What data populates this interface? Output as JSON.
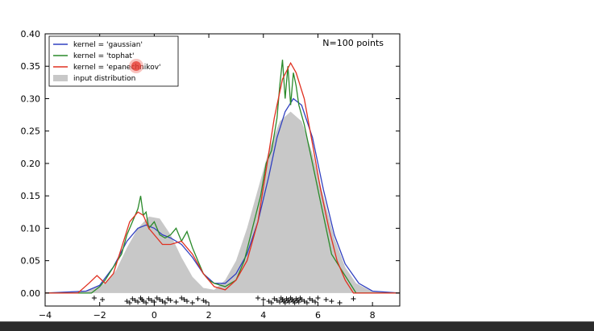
{
  "chart_data": {
    "type": "line",
    "annotation": "N=100 points",
    "xlim": [
      -4,
      9
    ],
    "ylim": [
      -0.02,
      0.4
    ],
    "x_ticks": [
      -4,
      -2,
      0,
      2,
      4,
      6,
      8
    ],
    "y_ticks": [
      0.0,
      0.05,
      0.1,
      0.15,
      0.2,
      0.25,
      0.3,
      0.35,
      0.4
    ],
    "x_tick_labels": [
      "−4",
      "−2",
      "0",
      "2",
      "4",
      "6",
      "8"
    ],
    "y_tick_labels": [
      "0.00",
      "0.05",
      "0.10",
      "0.15",
      "0.20",
      "0.25",
      "0.30",
      "0.35",
      "0.40"
    ],
    "legend": {
      "placement": "upper-left",
      "entries": [
        {
          "label": "kernel = 'gaussian'",
          "color": "#3040c0",
          "kind": "line"
        },
        {
          "label": "kernel = 'tophat'",
          "color": "#2a8a2a",
          "kind": "line"
        },
        {
          "label": "kernel = 'epanechnikov'",
          "color": "#e03020",
          "kind": "line"
        },
        {
          "label": "input distribution",
          "color": "#c8c8c8",
          "kind": "patch"
        }
      ]
    },
    "input_distribution": {
      "color": "#c8c8c8",
      "x": [
        -4,
        -2.5,
        -1.8,
        -1.4,
        -1.0,
        -0.6,
        -0.2,
        0.2,
        0.6,
        1.0,
        1.4,
        1.8,
        2.2,
        2.6,
        3.0,
        3.4,
        3.8,
        4.2,
        4.6,
        5.0,
        5.4,
        5.8,
        6.2,
        6.6,
        7.0,
        7.4,
        8.0,
        9.0
      ],
      "y": [
        0.0,
        0.004,
        0.015,
        0.035,
        0.07,
        0.1,
        0.118,
        0.115,
        0.09,
        0.055,
        0.025,
        0.008,
        0.005,
        0.02,
        0.05,
        0.1,
        0.16,
        0.22,
        0.265,
        0.28,
        0.265,
        0.215,
        0.15,
        0.085,
        0.04,
        0.015,
        0.002,
        0.0
      ]
    },
    "series": [
      {
        "name": "kernel = 'gaussian'",
        "color": "#3040c0",
        "x": [
          -4,
          -2.5,
          -2.0,
          -1.5,
          -1.0,
          -0.6,
          -0.3,
          0.0,
          0.3,
          0.6,
          1.0,
          1.4,
          1.8,
          2.2,
          2.6,
          3.0,
          3.4,
          3.8,
          4.2,
          4.5,
          4.8,
          5.1,
          5.4,
          5.8,
          6.2,
          6.6,
          7.0,
          7.5,
          8.0,
          9.0
        ],
        "y": [
          0.0,
          0.003,
          0.012,
          0.04,
          0.08,
          0.1,
          0.105,
          0.1,
          0.09,
          0.085,
          0.075,
          0.055,
          0.03,
          0.015,
          0.015,
          0.03,
          0.06,
          0.11,
          0.18,
          0.24,
          0.28,
          0.3,
          0.29,
          0.24,
          0.16,
          0.09,
          0.045,
          0.015,
          0.003,
          0.0
        ]
      },
      {
        "name": "kernel = 'tophat'",
        "color": "#2a8a2a",
        "x": [
          -4,
          -2.3,
          -2.0,
          -1.8,
          -1.5,
          -1.2,
          -1.0,
          -0.8,
          -0.6,
          -0.5,
          -0.4,
          -0.3,
          -0.2,
          0.0,
          0.2,
          0.4,
          0.6,
          0.8,
          1.0,
          1.2,
          1.4,
          1.6,
          1.8,
          2.0,
          2.2,
          2.6,
          3.0,
          3.3,
          3.6,
          3.9,
          4.1,
          4.3,
          4.5,
          4.6,
          4.7,
          4.8,
          4.9,
          5.0,
          5.1,
          5.2,
          5.3,
          5.5,
          5.7,
          5.9,
          6.1,
          6.3,
          6.5,
          6.8,
          7.1,
          7.4,
          9.0
        ],
        "y": [
          0.0,
          0.0,
          0.01,
          0.02,
          0.04,
          0.06,
          0.09,
          0.11,
          0.13,
          0.15,
          0.12,
          0.125,
          0.1,
          0.11,
          0.09,
          0.085,
          0.09,
          0.1,
          0.08,
          0.095,
          0.07,
          0.05,
          0.03,
          0.02,
          0.015,
          0.01,
          0.02,
          0.05,
          0.1,
          0.15,
          0.2,
          0.22,
          0.27,
          0.32,
          0.36,
          0.3,
          0.35,
          0.29,
          0.34,
          0.32,
          0.29,
          0.26,
          0.22,
          0.18,
          0.14,
          0.1,
          0.06,
          0.04,
          0.02,
          0.0,
          0.0
        ]
      },
      {
        "name": "kernel = 'epanechnikov'",
        "color": "#e03020",
        "x": [
          -4,
          -2.8,
          -2.4,
          -2.1,
          -1.8,
          -1.5,
          -1.2,
          -0.9,
          -0.6,
          -0.4,
          -0.2,
          0.0,
          0.3,
          0.6,
          1.0,
          1.4,
          1.8,
          2.2,
          2.6,
          3.0,
          3.4,
          3.8,
          4.1,
          4.4,
          4.7,
          5.0,
          5.2,
          5.5,
          5.8,
          6.1,
          6.4,
          6.7,
          7.0,
          7.3,
          9.0
        ],
        "y": [
          0.0,
          0.0,
          0.015,
          0.027,
          0.015,
          0.03,
          0.07,
          0.11,
          0.125,
          0.12,
          0.1,
          0.09,
          0.075,
          0.075,
          0.08,
          0.06,
          0.03,
          0.01,
          0.005,
          0.02,
          0.05,
          0.11,
          0.19,
          0.27,
          0.33,
          0.355,
          0.34,
          0.3,
          0.23,
          0.16,
          0.1,
          0.05,
          0.02,
          0.0,
          0.0
        ]
      }
    ],
    "samples_x": [
      -2.2,
      -1.9,
      -1.0,
      -0.9,
      -0.8,
      -0.7,
      -0.6,
      -0.5,
      -0.45,
      -0.4,
      -0.3,
      -0.2,
      -0.1,
      0.0,
      0.1,
      0.2,
      0.3,
      0.4,
      0.5,
      0.6,
      0.8,
      1.0,
      1.1,
      1.2,
      1.4,
      1.6,
      1.8,
      1.9,
      3.8,
      4.0,
      4.2,
      4.3,
      4.4,
      4.5,
      4.6,
      4.65,
      4.7,
      4.75,
      4.8,
      4.85,
      4.9,
      4.95,
      5.0,
      5.05,
      5.1,
      5.15,
      5.2,
      5.25,
      5.3,
      5.35,
      5.4,
      5.5,
      5.6,
      5.7,
      5.8,
      5.9,
      6.0,
      6.3,
      6.5,
      6.8,
      7.3
    ]
  }
}
